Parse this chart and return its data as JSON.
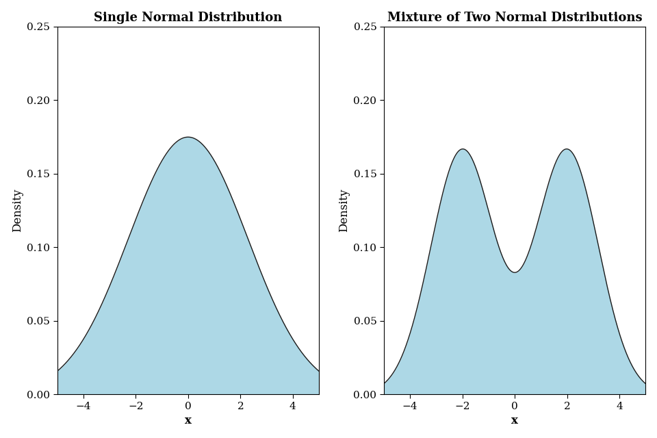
{
  "title_left": "Single Normal Distribution",
  "title_right": "Mixture of Two Normal Distributions",
  "xlabel": "x",
  "ylabel": "Density",
  "xlim": [
    -5,
    5
  ],
  "ylim": [
    0,
    0.25
  ],
  "yticks": [
    0.0,
    0.05,
    0.1,
    0.15,
    0.2,
    0.25
  ],
  "xticks": [
    -4,
    -2,
    0,
    2,
    4
  ],
  "fill_color": "#add8e6",
  "line_color": "#1a1a1a",
  "background_color": "#ffffff",
  "single_mean": 0,
  "single_std": 2.28,
  "mixture_mean1": -2,
  "mixture_mean2": 2,
  "mixture_std1": 1.2,
  "mixture_std2": 1.2,
  "mixture_weight1": 0.5,
  "mixture_weight2": 0.5,
  "title_fontsize": 13,
  "label_fontsize": 12,
  "tick_fontsize": 11,
  "line_width": 1.0
}
